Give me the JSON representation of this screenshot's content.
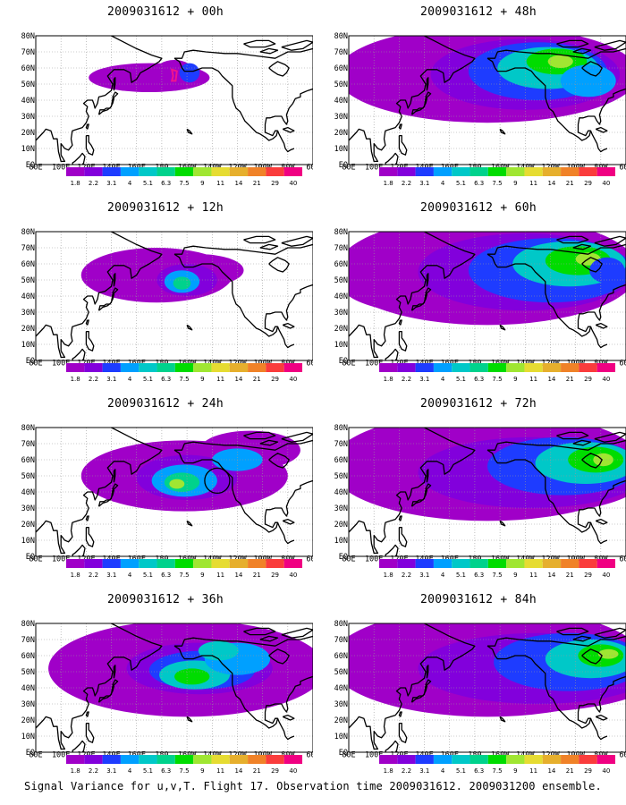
{
  "panels": [
    {
      "title": "2009031612 + 00h",
      "lead": 0
    },
    {
      "title": "2009031612 + 48h",
      "lead": 48
    },
    {
      "title": "2009031612 + 12h",
      "lead": 12
    },
    {
      "title": "2009031612 + 60h",
      "lead": 60
    },
    {
      "title": "2009031612 + 24h",
      "lead": 24
    },
    {
      "title": "2009031612 + 72h",
      "lead": 72
    },
    {
      "title": "2009031612 + 36h",
      "lead": 36
    },
    {
      "title": "2009031612 + 84h",
      "lead": 84
    }
  ],
  "lat_labels": [
    "80N",
    "70N",
    "60N",
    "50N",
    "40N",
    "30N",
    "20N",
    "10N",
    "EQ"
  ],
  "lon_labels": [
    "80E",
    "100E",
    "120E",
    "140E",
    "160E",
    "180",
    "160W",
    "140W",
    "120W",
    "100W",
    "80W",
    "60W"
  ],
  "colorbar": {
    "labels": [
      "1.8",
      "2.2",
      "3.1",
      "4",
      "5.1",
      "6.3",
      "7.5",
      "9",
      "11",
      "14",
      "21",
      "29",
      "40"
    ],
    "colors": [
      "#a000c8",
      "#8200dc",
      "#1e3cff",
      "#00a0ff",
      "#00c8c8",
      "#00d28c",
      "#00dc00",
      "#a0e632",
      "#e6dc32",
      "#e6af2d",
      "#f08228",
      "#fa3c3c",
      "#f00082"
    ]
  },
  "footer": "Signal Variance for u,v,T. Flight 17. Observation time 2009031612. 2009031200 ensemble."
}
